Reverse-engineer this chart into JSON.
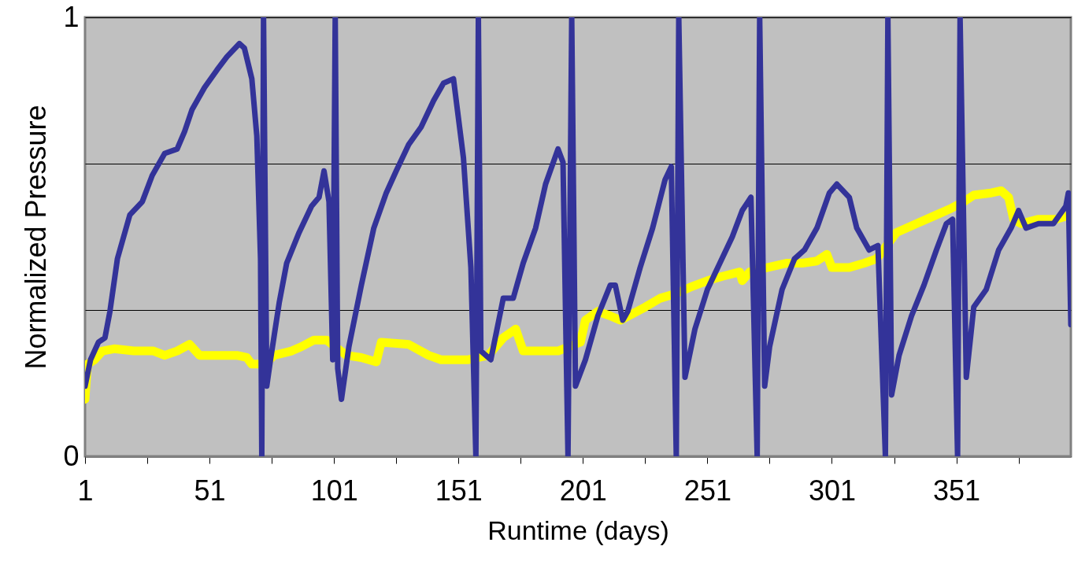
{
  "chart_data": {
    "type": "line",
    "xlabel": "Runtime (days)",
    "ylabel": "Normalized Pressure",
    "xlim": [
      1,
      397
    ],
    "xticks": [
      1,
      {
        "value": 26,
        "label": null
      },
      51,
      {
        "value": 76,
        "label": null
      },
      101,
      {
        "value": 126,
        "label": null
      },
      151,
      {
        "value": 176,
        "label": null
      },
      201,
      {
        "value": 226,
        "label": null
      },
      251,
      {
        "value": 276,
        "label": null
      },
      301,
      {
        "value": 326,
        "label": null
      },
      351,
      {
        "value": 376,
        "label": null
      }
    ],
    "ylim": [
      0,
      1
    ],
    "yticks": [
      0,
      {
        "value": 0.333,
        "label": null
      },
      {
        "value": 0.667,
        "label": null
      },
      1
    ],
    "grid": "y",
    "legend": false,
    "series": [
      {
        "color": "#ffff00",
        "x": [
          1,
          2,
          4.8,
          8,
          12.7,
          20.6,
          28.5,
          33,
          38,
          43,
          47,
          55,
          62,
          66,
          68,
          73,
          77,
          84,
          88,
          93,
          98,
          106,
          112,
          118,
          120,
          131,
          139,
          144,
          155,
          163,
          169,
          174,
          177,
          188,
          191,
          200,
          202,
          207,
          212,
          216,
          226,
          232,
          238,
          244,
          251,
          257,
          264,
          265,
          268,
          275,
          283,
          289,
          295,
          299,
          301,
          308,
          314,
          319,
          327,
          335,
          343,
          349,
          354,
          358,
          365,
          369,
          372,
          374,
          377,
          384,
          391,
          397
        ],
        "values": [
          0.13,
          0.21,
          0.22,
          0.24,
          0.245,
          0.24,
          0.24,
          0.23,
          0.24,
          0.255,
          0.23,
          0.23,
          0.23,
          0.225,
          0.21,
          0.21,
          0.23,
          0.24,
          0.25,
          0.265,
          0.265,
          0.23,
          0.225,
          0.215,
          0.26,
          0.255,
          0.23,
          0.22,
          0.22,
          0.23,
          0.27,
          0.29,
          0.24,
          0.24,
          0.24,
          0.26,
          0.31,
          0.33,
          0.32,
          0.31,
          0.34,
          0.36,
          0.37,
          0.385,
          0.4,
          0.41,
          0.42,
          0.4,
          0.42,
          0.43,
          0.44,
          0.44,
          0.445,
          0.46,
          0.43,
          0.43,
          0.44,
          0.45,
          0.51,
          0.53,
          0.55,
          0.565,
          0.58,
          0.595,
          0.6,
          0.605,
          0.59,
          0.54,
          0.53,
          0.54,
          0.54,
          0.55
        ]
      },
      {
        "color": "#333399",
        "x": [
          1,
          3.2,
          6.4,
          9,
          11,
          14,
          19,
          24,
          28,
          33,
          38,
          41,
          44,
          49,
          54,
          58,
          63,
          65,
          68,
          70,
          71.5,
          72,
          72.7,
          74,
          75.5,
          79,
          82,
          87,
          92,
          95,
          97,
          99,
          100.5,
          101.5,
          102.5,
          104,
          107,
          112,
          117,
          122,
          126,
          131,
          136,
          141,
          145,
          149,
          153,
          156,
          158,
          159,
          160,
          164,
          169,
          173,
          177,
          182,
          186,
          191,
          193,
          195,
          196.5,
          198,
          202,
          207,
          212,
          214,
          217,
          219,
          224,
          229,
          234,
          236.5,
          238.5,
          239.5,
          242,
          246,
          251,
          256,
          261,
          265,
          268.5,
          271,
          272,
          274,
          276,
          281,
          286,
          290,
          295,
          300,
          303,
          308,
          311,
          316,
          319.5,
          322.5,
          323.5,
          325,
          328,
          333,
          338,
          343,
          347,
          349.5,
          351.5,
          352.5,
          355,
          358,
          363,
          368,
          373,
          376,
          379,
          384,
          390,
          395,
          396,
          397
        ],
        "values": [
          0.16,
          0.22,
          0.26,
          0.27,
          0.33,
          0.45,
          0.55,
          0.58,
          0.64,
          0.69,
          0.7,
          0.74,
          0.79,
          0.84,
          0.88,
          0.91,
          0.94,
          0.93,
          0.86,
          0.73,
          0.45,
          0,
          1,
          0.16,
          0.22,
          0.35,
          0.44,
          0.51,
          0.57,
          0.59,
          0.65,
          0.58,
          0.22,
          1,
          0.2,
          0.13,
          0.25,
          0.39,
          0.52,
          0.6,
          0.65,
          0.71,
          0.75,
          0.81,
          0.85,
          0.86,
          0.68,
          0.43,
          0,
          1,
          0.24,
          0.22,
          0.36,
          0.36,
          0.44,
          0.52,
          0.62,
          0.7,
          0.67,
          0,
          1,
          0.16,
          0.22,
          0.32,
          0.39,
          0.39,
          0.31,
          0.33,
          0.43,
          0.52,
          0.63,
          0.66,
          0,
          1,
          0.18,
          0.29,
          0.38,
          0.44,
          0.5,
          0.56,
          0.59,
          0,
          1,
          0.16,
          0.25,
          0.38,
          0.45,
          0.47,
          0.52,
          0.6,
          0.62,
          0.59,
          0.52,
          0.47,
          0.48,
          0,
          1,
          0.14,
          0.23,
          0.32,
          0.39,
          0.47,
          0.53,
          0.54,
          0,
          1,
          0.18,
          0.34,
          0.38,
          0.47,
          0.52,
          0.56,
          0.52,
          0.53,
          0.53,
          0.57,
          0.6,
          0.3
        ]
      }
    ]
  }
}
